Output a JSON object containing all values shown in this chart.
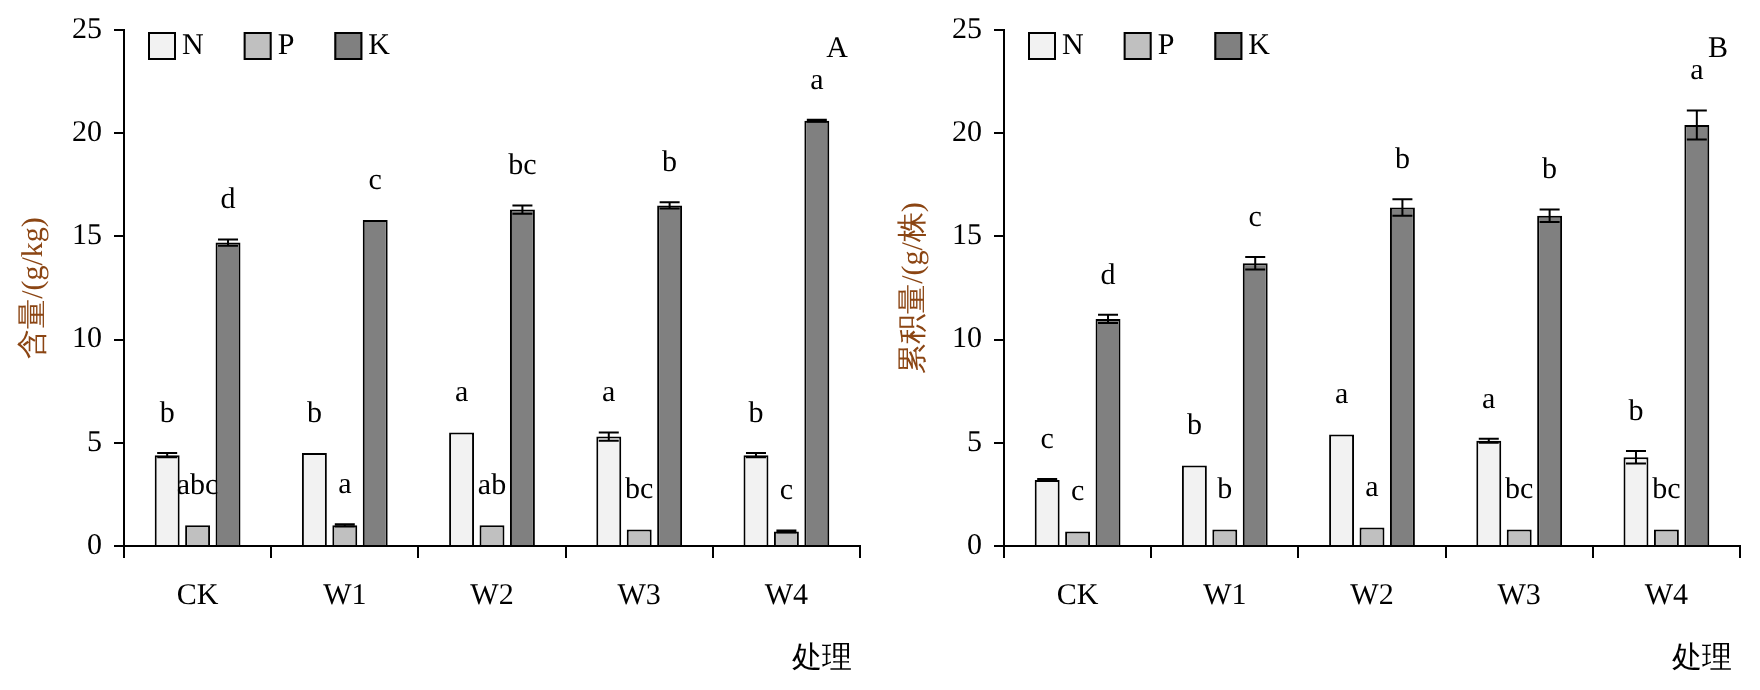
{
  "chart_data": [
    {
      "type": "bar",
      "categories": [
        "CK",
        "W1",
        "W2",
        "W3",
        "W4"
      ],
      "xlabel": "处理",
      "ylabel": "含量/(g/kg)",
      "ylim": [
        0,
        25
      ],
      "yticks": [
        0,
        5,
        10,
        15,
        20,
        25
      ],
      "grid": false,
      "legend": "top left",
      "annotations": [
        "A"
      ],
      "series": [
        {
          "name": "N",
          "color": "#f2f2f2",
          "values": [
            4.4,
            4.5,
            5.5,
            5.3,
            4.4
          ],
          "errors": [
            0.1,
            null,
            null,
            0.2,
            0.1
          ],
          "value_labels": [
            "b",
            "b",
            "a",
            "a",
            "b"
          ]
        },
        {
          "name": "P",
          "color": "#c0c0c0",
          "values": [
            1.0,
            1.0,
            1.0,
            0.8,
            0.7
          ],
          "errors": [
            null,
            0.05,
            null,
            null,
            0.05
          ],
          "value_labels": [
            "abc",
            "a",
            "ab",
            "bc",
            "c"
          ]
        },
        {
          "name": "K",
          "color": "#808080",
          "values": [
            14.7,
            15.8,
            16.3,
            16.5,
            20.6
          ],
          "errors": [
            0.15,
            null,
            0.2,
            0.15,
            0.05
          ],
          "value_labels": [
            "d",
            "c",
            "bc",
            "b",
            "a"
          ]
        }
      ]
    },
    {
      "type": "bar",
      "categories": [
        "CK",
        "W1",
        "W2",
        "W3",
        "W4"
      ],
      "xlabel": "处理",
      "ylabel": "累积量/(g/株)",
      "ylim": [
        0,
        25
      ],
      "yticks": [
        0,
        5,
        10,
        15,
        20,
        25
      ],
      "grid": false,
      "legend": "top left",
      "annotations": [
        "B"
      ],
      "series": [
        {
          "name": "N",
          "color": "#f2f2f2",
          "values": [
            3.2,
            3.9,
            5.4,
            5.1,
            4.3
          ],
          "errors": [
            0.05,
            null,
            null,
            0.1,
            0.3
          ],
          "value_labels": [
            "c",
            "b",
            "a",
            "a",
            "b"
          ]
        },
        {
          "name": "P",
          "color": "#c0c0c0",
          "values": [
            0.7,
            0.8,
            0.9,
            0.8,
            0.8
          ],
          "errors": [
            null,
            null,
            null,
            null,
            null
          ],
          "value_labels": [
            "c",
            "b",
            "a",
            "bc",
            "bc"
          ]
        },
        {
          "name": "K",
          "color": "#808080",
          "values": [
            11.0,
            13.7,
            16.4,
            16.0,
            20.4
          ],
          "errors": [
            0.2,
            0.3,
            0.4,
            0.3,
            0.7
          ],
          "value_labels": [
            "d",
            "c",
            "b",
            "b",
            "a"
          ]
        }
      ]
    }
  ]
}
